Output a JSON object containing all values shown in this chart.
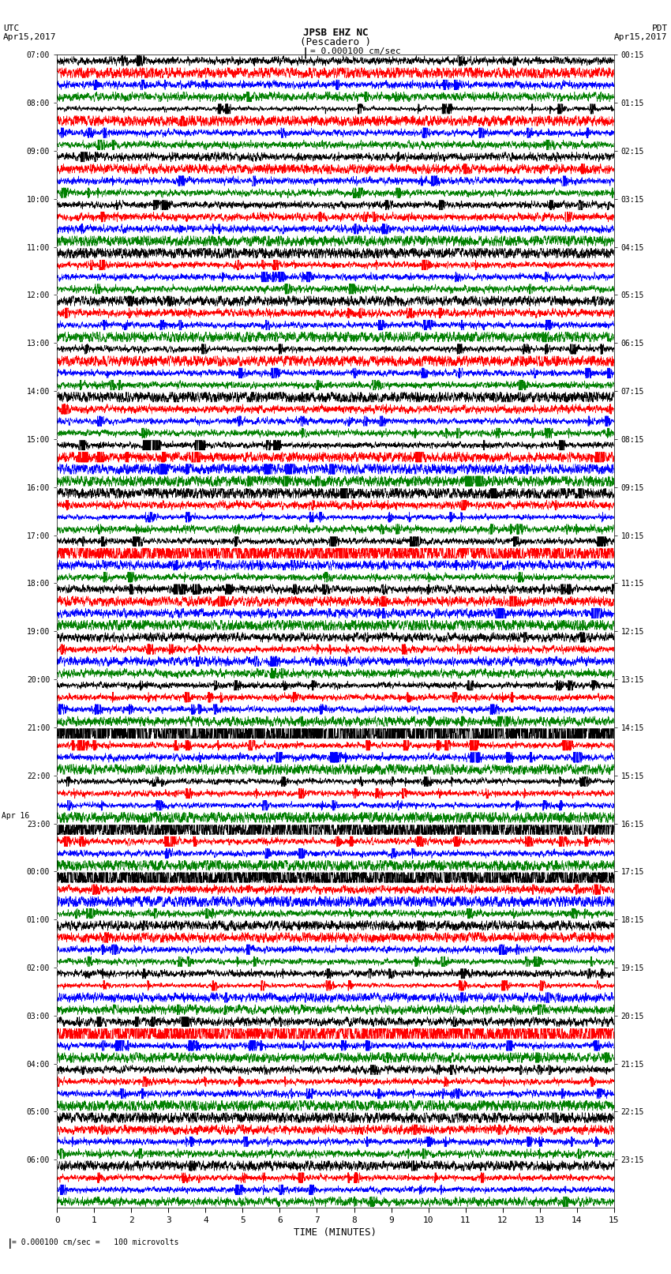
{
  "title_line1": "JPSB EHZ NC",
  "title_line2": "(Pescadero )",
  "scale_label": "= 0.000100 cm/sec",
  "bottom_label": "= 0.000100 cm/sec =   100 microvolts",
  "xlabel": "TIME (MINUTES)",
  "xlim": [
    0,
    15
  ],
  "xticks": [
    0,
    1,
    2,
    3,
    4,
    5,
    6,
    7,
    8,
    9,
    10,
    11,
    12,
    13,
    14,
    15
  ],
  "colors": [
    "black",
    "red",
    "blue",
    "green"
  ],
  "num_rows": 96,
  "fig_width": 8.5,
  "fig_height": 16.13,
  "dpi": 100,
  "left_times": [
    "07:00",
    "",
    "",
    "",
    "08:00",
    "",
    "",
    "",
    "09:00",
    "",
    "",
    "",
    "10:00",
    "",
    "",
    "",
    "11:00",
    "",
    "",
    "",
    "12:00",
    "",
    "",
    "",
    "13:00",
    "",
    "",
    "",
    "14:00",
    "",
    "",
    "",
    "15:00",
    "",
    "",
    "",
    "16:00",
    "",
    "",
    "",
    "17:00",
    "",
    "",
    "",
    "18:00",
    "",
    "",
    "",
    "19:00",
    "",
    "",
    "",
    "20:00",
    "",
    "",
    "",
    "21:00",
    "",
    "",
    "",
    "22:00",
    "",
    "",
    "",
    "23:00",
    "",
    "",
    "",
    "00:00",
    "",
    "",
    "",
    "01:00",
    "",
    "",
    "",
    "02:00",
    "",
    "",
    "",
    "03:00",
    "",
    "",
    "",
    "04:00",
    "",
    "",
    "",
    "05:00",
    "",
    "",
    "",
    "06:00",
    "",
    "",
    ""
  ],
  "right_times": [
    "00:15",
    "",
    "",
    "",
    "01:15",
    "",
    "",
    "",
    "02:15",
    "",
    "",
    "",
    "03:15",
    "",
    "",
    "",
    "04:15",
    "",
    "",
    "",
    "05:15",
    "",
    "",
    "",
    "06:15",
    "",
    "",
    "",
    "07:15",
    "",
    "",
    "",
    "08:15",
    "",
    "",
    "",
    "09:15",
    "",
    "",
    "",
    "10:15",
    "",
    "",
    "",
    "11:15",
    "",
    "",
    "",
    "12:15",
    "",
    "",
    "",
    "13:15",
    "",
    "",
    "",
    "14:15",
    "",
    "",
    "",
    "15:15",
    "",
    "",
    "",
    "16:15",
    "",
    "",
    "",
    "17:15",
    "",
    "",
    "",
    "18:15",
    "",
    "",
    "",
    "19:15",
    "",
    "",
    "",
    "20:15",
    "",
    "",
    "",
    "21:15",
    "",
    "",
    "",
    "22:15",
    "",
    "",
    "",
    "23:15",
    "",
    "",
    ""
  ],
  "apr16_row": 64,
  "background_color": "white",
  "trace_linewidth": 0.4
}
